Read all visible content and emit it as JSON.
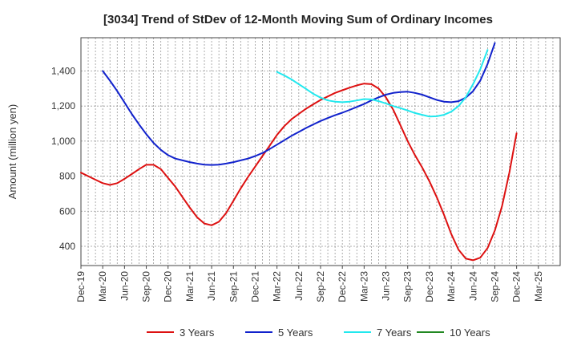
{
  "chart_data": {
    "type": "line",
    "title": "[3034]  Trend of StDev of 12-Month Moving Sum of Ordinary Incomes",
    "xlabel": "",
    "ylabel": "Amount (million yen)",
    "ylim": [
      290,
      1590
    ],
    "yticks": [
      400,
      600,
      800,
      1000,
      1200,
      1400
    ],
    "ytick_labels": [
      "400",
      "600",
      "800",
      "1,000",
      "1,200",
      "1,400"
    ],
    "x_index_range": [
      0,
      66
    ],
    "x_ticks": [
      {
        "i": 0,
        "label": "Dec-19"
      },
      {
        "i": 3,
        "label": "Mar-20"
      },
      {
        "i": 6,
        "label": "Jun-20"
      },
      {
        "i": 9,
        "label": "Sep-20"
      },
      {
        "i": 12,
        "label": "Dec-20"
      },
      {
        "i": 15,
        "label": "Mar-21"
      },
      {
        "i": 18,
        "label": "Jun-21"
      },
      {
        "i": 21,
        "label": "Sep-21"
      },
      {
        "i": 24,
        "label": "Dec-21"
      },
      {
        "i": 27,
        "label": "Mar-22"
      },
      {
        "i": 30,
        "label": "Jun-22"
      },
      {
        "i": 33,
        "label": "Sep-22"
      },
      {
        "i": 36,
        "label": "Dec-22"
      },
      {
        "i": 39,
        "label": "Mar-23"
      },
      {
        "i": 42,
        "label": "Jun-23"
      },
      {
        "i": 45,
        "label": "Sep-23"
      },
      {
        "i": 48,
        "label": "Dec-23"
      },
      {
        "i": 51,
        "label": "Mar-24"
      },
      {
        "i": 54,
        "label": "Jun-24"
      },
      {
        "i": 57,
        "label": "Sep-24"
      },
      {
        "i": 60,
        "label": "Dec-24"
      },
      {
        "i": 63,
        "label": "Mar-25"
      }
    ],
    "grid": true,
    "legend_position": "bottom",
    "series": [
      {
        "name": "3 Years",
        "color": "#dd1111",
        "points": [
          [
            0,
            820
          ],
          [
            1,
            800
          ],
          [
            2,
            780
          ],
          [
            3,
            760
          ],
          [
            4,
            750
          ],
          [
            5,
            760
          ],
          [
            6,
            785
          ],
          [
            7,
            812
          ],
          [
            8,
            840
          ],
          [
            9,
            865
          ],
          [
            10,
            865
          ],
          [
            11,
            840
          ],
          [
            12,
            790
          ],
          [
            13,
            740
          ],
          [
            14,
            680
          ],
          [
            15,
            620
          ],
          [
            16,
            565
          ],
          [
            17,
            530
          ],
          [
            18,
            520
          ],
          [
            19,
            540
          ],
          [
            20,
            590
          ],
          [
            21,
            660
          ],
          [
            22,
            730
          ],
          [
            23,
            795
          ],
          [
            24,
            855
          ],
          [
            25,
            915
          ],
          [
            26,
            975
          ],
          [
            27,
            1035
          ],
          [
            28,
            1085
          ],
          [
            29,
            1125
          ],
          [
            30,
            1155
          ],
          [
            31,
            1185
          ],
          [
            32,
            1210
          ],
          [
            33,
            1235
          ],
          [
            34,
            1255
          ],
          [
            35,
            1275
          ],
          [
            36,
            1290
          ],
          [
            37,
            1305
          ],
          [
            38,
            1318
          ],
          [
            39,
            1328
          ],
          [
            40,
            1325
          ],
          [
            41,
            1300
          ],
          [
            42,
            1250
          ],
          [
            43,
            1180
          ],
          [
            44,
            1090
          ],
          [
            45,
            1000
          ],
          [
            46,
            920
          ],
          [
            47,
            850
          ],
          [
            48,
            770
          ],
          [
            49,
            680
          ],
          [
            50,
            580
          ],
          [
            51,
            470
          ],
          [
            52,
            380
          ],
          [
            53,
            330
          ],
          [
            54,
            320
          ],
          [
            55,
            335
          ],
          [
            56,
            390
          ],
          [
            57,
            490
          ],
          [
            58,
            630
          ],
          [
            59,
            820
          ],
          [
            60,
            1045
          ]
        ]
      },
      {
        "name": "5 Years",
        "color": "#1122cc",
        "points": [
          [
            3,
            1400
          ],
          [
            4,
            1345
          ],
          [
            5,
            1285
          ],
          [
            6,
            1220
          ],
          [
            7,
            1155
          ],
          [
            8,
            1095
          ],
          [
            9,
            1040
          ],
          [
            10,
            990
          ],
          [
            11,
            950
          ],
          [
            12,
            920
          ],
          [
            13,
            900
          ],
          [
            14,
            890
          ],
          [
            15,
            880
          ],
          [
            16,
            872
          ],
          [
            17,
            866
          ],
          [
            18,
            864
          ],
          [
            19,
            866
          ],
          [
            20,
            872
          ],
          [
            21,
            880
          ],
          [
            22,
            890
          ],
          [
            23,
            900
          ],
          [
            24,
            915
          ],
          [
            25,
            932
          ],
          [
            26,
            955
          ],
          [
            27,
            980
          ],
          [
            28,
            1005
          ],
          [
            29,
            1030
          ],
          [
            30,
            1052
          ],
          [
            31,
            1075
          ],
          [
            32,
            1095
          ],
          [
            33,
            1115
          ],
          [
            34,
            1132
          ],
          [
            35,
            1148
          ],
          [
            36,
            1162
          ],
          [
            37,
            1178
          ],
          [
            38,
            1195
          ],
          [
            39,
            1212
          ],
          [
            40,
            1232
          ],
          [
            41,
            1250
          ],
          [
            42,
            1265
          ],
          [
            43,
            1275
          ],
          [
            44,
            1280
          ],
          [
            45,
            1282
          ],
          [
            46,
            1275
          ],
          [
            47,
            1265
          ],
          [
            48,
            1250
          ],
          [
            49,
            1235
          ],
          [
            50,
            1225
          ],
          [
            51,
            1222
          ],
          [
            52,
            1228
          ],
          [
            53,
            1248
          ],
          [
            54,
            1285
          ],
          [
            55,
            1345
          ],
          [
            56,
            1440
          ],
          [
            57,
            1560
          ]
        ]
      },
      {
        "name": "7 Years",
        "color": "#22e8ee",
        "points": [
          [
            27,
            1395
          ],
          [
            28,
            1375
          ],
          [
            29,
            1352
          ],
          [
            30,
            1325
          ],
          [
            31,
            1298
          ],
          [
            32,
            1270
          ],
          [
            33,
            1248
          ],
          [
            34,
            1232
          ],
          [
            35,
            1225
          ],
          [
            36,
            1222
          ],
          [
            37,
            1225
          ],
          [
            38,
            1232
          ],
          [
            39,
            1240
          ],
          [
            40,
            1238
          ],
          [
            41,
            1228
          ],
          [
            42,
            1215
          ],
          [
            43,
            1200
          ],
          [
            44,
            1188
          ],
          [
            45,
            1175
          ],
          [
            46,
            1160
          ],
          [
            47,
            1150
          ],
          [
            48,
            1140
          ],
          [
            49,
            1142
          ],
          [
            50,
            1150
          ],
          [
            51,
            1168
          ],
          [
            52,
            1200
          ],
          [
            53,
            1250
          ],
          [
            54,
            1325
          ],
          [
            55,
            1410
          ],
          [
            56,
            1520
          ]
        ]
      },
      {
        "name": "10 Years",
        "color": "#228822",
        "points": []
      }
    ]
  }
}
